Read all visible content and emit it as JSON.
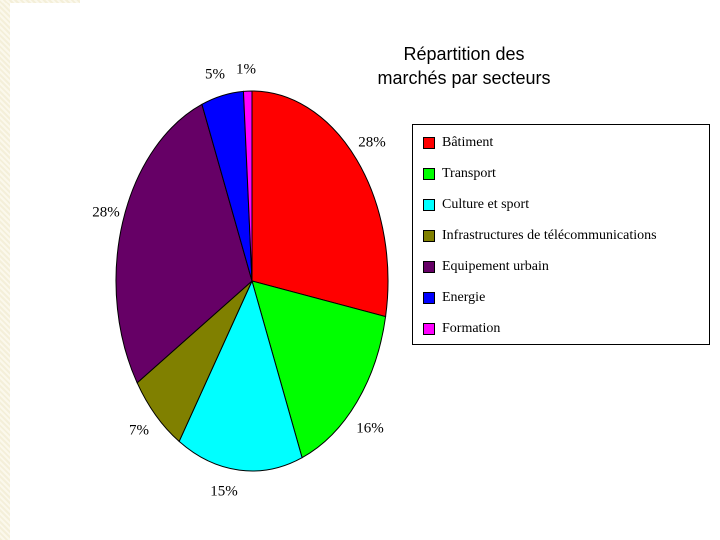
{
  "chart_data": {
    "type": "pie",
    "title_lines": [
      "Répartition des",
      "marchés par secteurs"
    ],
    "start_angle_deg": 0,
    "direction": "clockwise",
    "slices": [
      {
        "name": "Bâtiment",
        "value": 28,
        "label": "28%",
        "color": "#ff0000"
      },
      {
        "name": "Transport",
        "value": 16,
        "label": "16%",
        "color": "#00ff00"
      },
      {
        "name": "Culture et sport",
        "value": 15,
        "label": "15%",
        "color": "#00ffff"
      },
      {
        "name": "Infrastructures de télécommunications",
        "value": 7,
        "label": "7%",
        "color": "#808000"
      },
      {
        "name": "Equipement urbain",
        "value": 28,
        "label": "28%",
        "color": "#660066"
      },
      {
        "name": "Energie",
        "value": 5,
        "label": "5%",
        "color": "#0000ff"
      },
      {
        "name": "Formation",
        "value": 1,
        "label": "1%",
        "color": "#ff00ff"
      }
    ]
  }
}
